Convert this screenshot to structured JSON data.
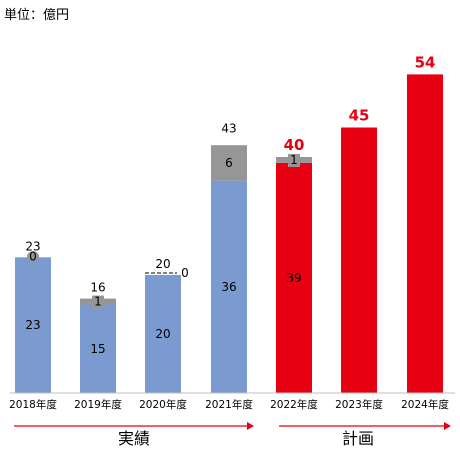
{
  "chart_data": {
    "type": "bar",
    "stacked": true,
    "unit_label": "単位：億円",
    "categories": [
      "2018年度",
      "2019年度",
      "2020年度",
      "2021年度",
      "2022年度",
      "2023年度",
      "2024年度"
    ],
    "series": [
      {
        "values": [
          23,
          15,
          20,
          36,
          39,
          null,
          null
        ],
        "color": "#7b9bd0"
      },
      {
        "values": [
          0,
          1,
          0,
          6,
          1,
          null,
          null
        ],
        "color": "#969696"
      },
      {
        "values": [
          null,
          null,
          null,
          null,
          null,
          45,
          54
        ],
        "color": "#e60012"
      }
    ],
    "segment_labels": [
      [
        "23",
        "15",
        "20",
        "36",
        "39",
        "",
        ""
      ],
      [
        "0",
        "1",
        "0",
        "6",
        "1",
        "",
        ""
      ]
    ],
    "totals": [
      "23",
      "16",
      "20",
      "43",
      "40",
      "45",
      "54"
    ],
    "actual_color": "#7b9bd0",
    "plan_color": "#e60012",
    "other_color": "#969696",
    "groups": [
      {
        "label": "実績",
        "categories": [
          "2018年度",
          "2019年度",
          "2020年度",
          "2021年度"
        ]
      },
      {
        "label": "計画",
        "categories": [
          "2022年度",
          "2023年度",
          "2024年度"
        ]
      }
    ],
    "ylim": [
      0,
      60
    ],
    "grid": false
  }
}
